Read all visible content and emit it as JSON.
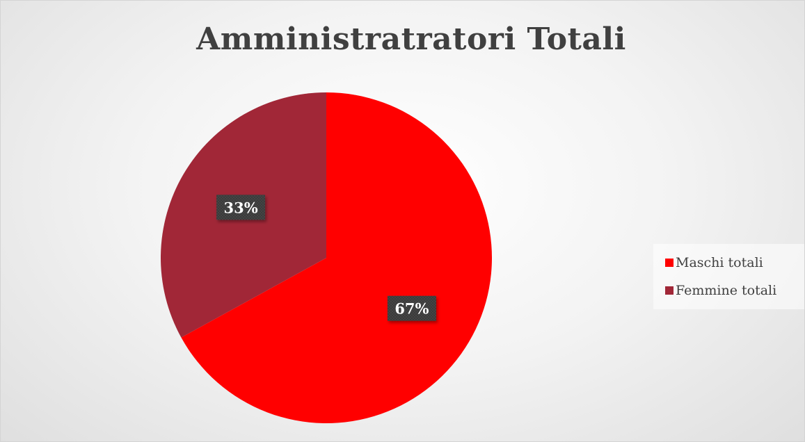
{
  "chart_data": {
    "type": "pie",
    "title": "Amministratratori Totali",
    "series": [
      {
        "categories": [
          "Maschi totali",
          "Femmine totali"
        ],
        "values": [
          67,
          33
        ],
        "labels": [
          "67%",
          "33%"
        ]
      }
    ],
    "colors": [
      "#ff0000",
      "#a12737"
    ],
    "legend_position": "right",
    "start_angle_deg": 0,
    "direction": "clockwise"
  }
}
